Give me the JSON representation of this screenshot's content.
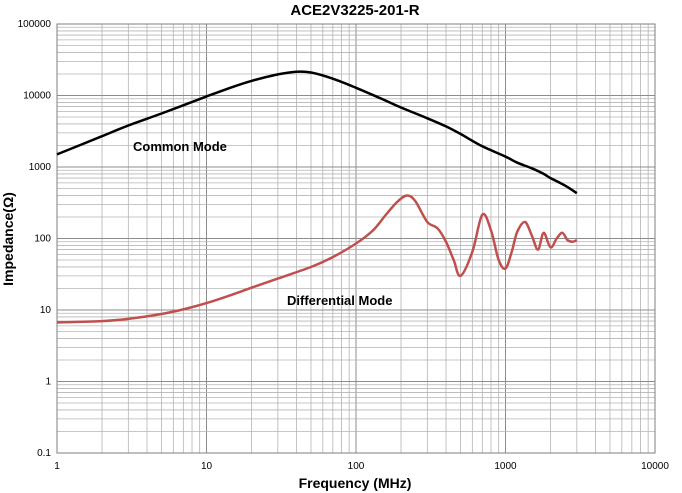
{
  "chart_data": {
    "type": "line",
    "title": "ACE2V3225-201-R",
    "xlabel": "Frequency (MHz)",
    "ylabel": "Impedance(Ω)",
    "x_scale": "log",
    "y_scale": "log",
    "xlim": [
      1,
      10000
    ],
    "ylim": [
      0.1,
      100000
    ],
    "x_ticks": [
      "1",
      "10",
      "100",
      "1000",
      "10000"
    ],
    "y_ticks": [
      "100000",
      "10000",
      "1000",
      "100",
      "10",
      "1",
      "0.1"
    ],
    "grid": true,
    "series": [
      {
        "name": "Common Mode",
        "color": "#000000",
        "x": [
          1,
          2,
          3,
          5,
          7,
          10,
          15,
          20,
          30,
          40,
          50,
          70,
          100,
          150,
          200,
          300,
          400,
          500,
          700,
          1000,
          1200,
          1500,
          1800,
          2000,
          2500,
          3000
        ],
        "y": [
          1500,
          2700,
          3800,
          5600,
          7300,
          9700,
          13200,
          16000,
          19700,
          21500,
          21000,
          17200,
          12800,
          8900,
          6800,
          4800,
          3700,
          2900,
          1950,
          1400,
          1150,
          960,
          800,
          700,
          550,
          430
        ]
      },
      {
        "name": "Differential Mode",
        "color": "#c0504d",
        "x": [
          1,
          2,
          3,
          5,
          7,
          10,
          15,
          20,
          30,
          50,
          70,
          100,
          130,
          160,
          190,
          220,
          250,
          300,
          350,
          400,
          450,
          500,
          600,
          700,
          800,
          900,
          1000,
          1100,
          1200,
          1350,
          1500,
          1650,
          1800,
          2000,
          2200,
          2400,
          2600,
          2800,
          3000
        ],
        "y": [
          6.7,
          7.0,
          7.5,
          8.8,
          10.2,
          12.5,
          16.5,
          20.5,
          27.5,
          40,
          55,
          85,
          130,
          220,
          330,
          400,
          330,
          170,
          140,
          90,
          50,
          30,
          65,
          215,
          130,
          50,
          38,
          65,
          125,
          170,
          110,
          70,
          120,
          75,
          100,
          120,
          95,
          90,
          95
        ]
      }
    ],
    "annotations": [
      "Common Mode",
      "Differential Mode"
    ]
  }
}
